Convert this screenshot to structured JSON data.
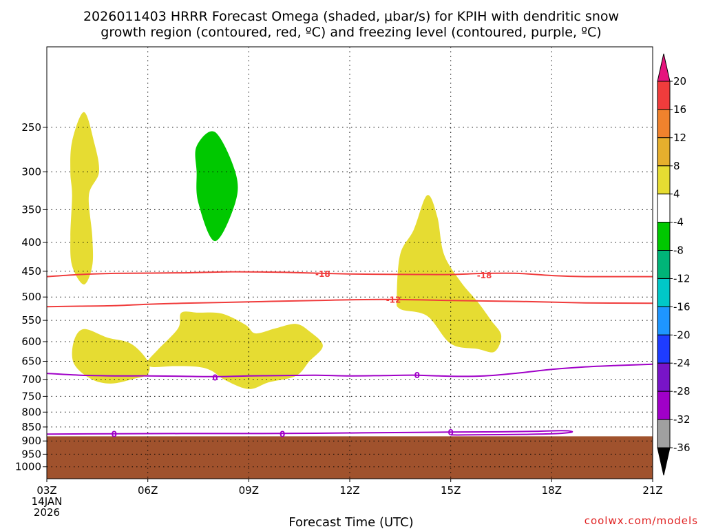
{
  "chart_data": {
    "type": "heatmap",
    "title_line1": "2026011403 HRRR Forecast Omega (shaded, μbar/s) for KPIH with dendritic snow",
    "title_line2": "growth region (contoured, red, ºC) and freezing level (contoured, purple, ºC)",
    "xlabel": "Forecast Time (UTC)",
    "x_ticks": [
      {
        "hour": 0,
        "label": "03Z",
        "label2": "14JAN",
        "label3": "2026"
      },
      {
        "hour": 3,
        "label": "06Z"
      },
      {
        "hour": 6,
        "label": "09Z"
      },
      {
        "hour": 9,
        "label": "12Z"
      },
      {
        "hour": 12,
        "label": "15Z"
      },
      {
        "hour": 15,
        "label": "18Z"
      },
      {
        "hour": 18,
        "label": "21Z"
      }
    ],
    "xlim": [
      0,
      18
    ],
    "y_ticks": [
      {
        "p": 250,
        "label": "250"
      },
      {
        "p": 300,
        "label": "300"
      },
      {
        "p": 350,
        "label": "350"
      },
      {
        "p": 400,
        "label": "400"
      },
      {
        "p": 450,
        "label": "450"
      },
      {
        "p": 500,
        "label": "500"
      },
      {
        "p": 550,
        "label": "550"
      },
      {
        "p": 600,
        "label": "600"
      },
      {
        "p": 650,
        "label": "650"
      },
      {
        "p": 700,
        "label": "700"
      },
      {
        "p": 750,
        "label": "750"
      },
      {
        "p": 800,
        "label": "800"
      },
      {
        "p": 850,
        "label": "850"
      },
      {
        "p": 900,
        "label": "900"
      },
      {
        "p": 950,
        "label": "950"
      },
      {
        "p": 1000,
        "label": "1000"
      }
    ],
    "ylim_hpa": [
      1050,
      180
    ],
    "y_scale": "log-pressure",
    "grid": true,
    "terrain": {
      "color": "#a0522d",
      "surface_hpa": 883
    },
    "shaded_regions": [
      {
        "color": "#e6dc32",
        "bin": "4 to 8",
        "pts": [
          [
            1.1,
            235
          ],
          [
            1.4,
            265
          ],
          [
            1.55,
            300
          ],
          [
            1.25,
            330
          ],
          [
            1.35,
            390
          ],
          [
            1.35,
            440
          ],
          [
            1.1,
            475
          ],
          [
            0.75,
            440
          ],
          [
            0.7,
            390
          ],
          [
            0.75,
            330
          ],
          [
            0.7,
            300
          ],
          [
            0.75,
            265
          ]
        ]
      },
      {
        "color": "#00c800",
        "bin": "-8 to -4",
        "pts": [
          [
            5.0,
            255
          ],
          [
            5.6,
            300
          ],
          [
            5.6,
            340
          ],
          [
            5.0,
            398
          ],
          [
            4.5,
            340
          ],
          [
            4.45,
            300
          ],
          [
            4.45,
            270
          ]
        ]
      },
      {
        "color": "#e6dc32",
        "bin": "4 to 8",
        "pts": [
          [
            11.3,
            330
          ],
          [
            11.6,
            360
          ],
          [
            11.8,
            420
          ],
          [
            12.3,
            470
          ],
          [
            12.8,
            510
          ],
          [
            13.2,
            550
          ],
          [
            13.5,
            585
          ],
          [
            13.3,
            625
          ],
          [
            12.8,
            618
          ],
          [
            12.0,
            605
          ],
          [
            11.3,
            540
          ],
          [
            10.5,
            525
          ],
          [
            10.4,
            500
          ],
          [
            10.5,
            420
          ],
          [
            10.9,
            380
          ]
        ]
      },
      {
        "color": "#e6dc32",
        "bin": "4 to 8",
        "pts": [
          [
            0.8,
            600
          ],
          [
            1.1,
            570
          ],
          [
            1.8,
            590
          ],
          [
            2.5,
            605
          ],
          [
            3.0,
            650
          ],
          [
            3.0,
            685
          ],
          [
            2.6,
            698
          ],
          [
            1.9,
            712
          ],
          [
            1.3,
            698
          ],
          [
            0.8,
            655
          ]
        ]
      },
      {
        "color": "#e6dc32",
        "bin": "4 to 8",
        "pts": [
          [
            3.0,
            650
          ],
          [
            3.3,
            620
          ],
          [
            3.9,
            568
          ],
          [
            4.0,
            533
          ],
          [
            4.5,
            533
          ],
          [
            5.2,
            535
          ],
          [
            5.9,
            560
          ],
          [
            6.2,
            580
          ],
          [
            6.8,
            568
          ],
          [
            7.4,
            558
          ],
          [
            7.8,
            575
          ],
          [
            8.2,
            610
          ],
          [
            7.8,
            650
          ],
          [
            7.4,
            690
          ],
          [
            6.6,
            708
          ],
          [
            6.0,
            728
          ],
          [
            5.3,
            702
          ],
          [
            4.9,
            676
          ],
          [
            4.5,
            665
          ],
          [
            3.8,
            663
          ],
          [
            3.1,
            665
          ]
        ]
      }
    ],
    "contours": [
      {
        "name": "-18",
        "color": "#f03c3c",
        "pts": [
          [
            0,
            460
          ],
          [
            1,
            456
          ],
          [
            2,
            454
          ],
          [
            4,
            453
          ],
          [
            5.5,
            451
          ],
          [
            7,
            452
          ],
          [
            9,
            455
          ],
          [
            11,
            456
          ],
          [
            12,
            456
          ],
          [
            13,
            454
          ],
          [
            14,
            454
          ],
          [
            15,
            458
          ],
          [
            16,
            460
          ],
          [
            18,
            460
          ]
        ],
        "labels": [
          [
            8.2,
            455
          ],
          [
            13.0,
            457
          ]
        ]
      },
      {
        "name": "-12",
        "color": "#f03c3c",
        "pts": [
          [
            0,
            520
          ],
          [
            1,
            519
          ],
          [
            2,
            518
          ],
          [
            3,
            515
          ],
          [
            4,
            513
          ],
          [
            6,
            510
          ],
          [
            8,
            507
          ],
          [
            10,
            505
          ],
          [
            12,
            507
          ],
          [
            14,
            509
          ],
          [
            16,
            512
          ],
          [
            18,
            513
          ]
        ],
        "labels": [
          [
            10.3,
            505
          ]
        ]
      },
      {
        "name": "0 (upper)",
        "color": "#a000c8",
        "pts": [
          [
            0,
            683
          ],
          [
            1,
            688
          ],
          [
            2,
            690
          ],
          [
            3,
            690
          ],
          [
            4,
            691
          ],
          [
            5,
            692
          ],
          [
            6,
            690
          ],
          [
            7,
            689
          ],
          [
            8,
            688
          ],
          [
            9,
            690
          ],
          [
            10,
            689
          ],
          [
            11,
            688
          ],
          [
            12,
            691
          ],
          [
            13,
            690
          ],
          [
            14,
            682
          ],
          [
            15,
            672
          ],
          [
            16,
            665
          ],
          [
            17,
            661
          ],
          [
            18,
            658
          ]
        ],
        "labels": [
          [
            5.0,
            694
          ],
          [
            11.0,
            688
          ]
        ]
      },
      {
        "name": "0 (lower)",
        "color": "#a000c8",
        "pts": [
          [
            0,
            875
          ],
          [
            2,
            874
          ],
          [
            4,
            873
          ],
          [
            6,
            873
          ],
          [
            8,
            872
          ],
          [
            10,
            870
          ],
          [
            12,
            868
          ],
          [
            13.5,
            867
          ],
          [
            14.6,
            865
          ],
          [
            15.3,
            863
          ],
          [
            15.6,
            866
          ],
          [
            15.5,
            870
          ],
          [
            15.0,
            874
          ],
          [
            14.2,
            876
          ],
          [
            13.5,
            877
          ],
          [
            12.4,
            878
          ],
          [
            12.0,
            878
          ]
        ],
        "labels": [
          [
            2.0,
            875
          ],
          [
            7.0,
            874
          ],
          [
            12.0,
            869
          ]
        ]
      }
    ],
    "contour_label_text": {
      "-18": "-18",
      "-12": "-12",
      "0": "0"
    },
    "colorbar": {
      "labels": [
        "20",
        "16",
        "12",
        "8",
        "4",
        "-4",
        "-8",
        "-12",
        "-16",
        "-20",
        "-24",
        "-28",
        "-32",
        "-36"
      ],
      "bins": [
        {
          "color": "#f03c3c"
        },
        {
          "color": "#f0822d"
        },
        {
          "color": "#e6af2d"
        },
        {
          "color": "#e6dc32"
        },
        {
          "color": "#ffffff"
        },
        {
          "color": "#00c800"
        },
        {
          "color": "#00b478"
        },
        {
          "color": "#00c8c8"
        },
        {
          "color": "#1e96ff"
        },
        {
          "color": "#1e3cff"
        },
        {
          "color": "#7814c8"
        },
        {
          "color": "#a000c8"
        },
        {
          "color": "#a0a0a0"
        }
      ],
      "top_arrow_color": "#e6147d",
      "bottom_arrow_color": "#000000"
    },
    "credit": "coolwx.com/models",
    "credit_color": "#e02020"
  }
}
